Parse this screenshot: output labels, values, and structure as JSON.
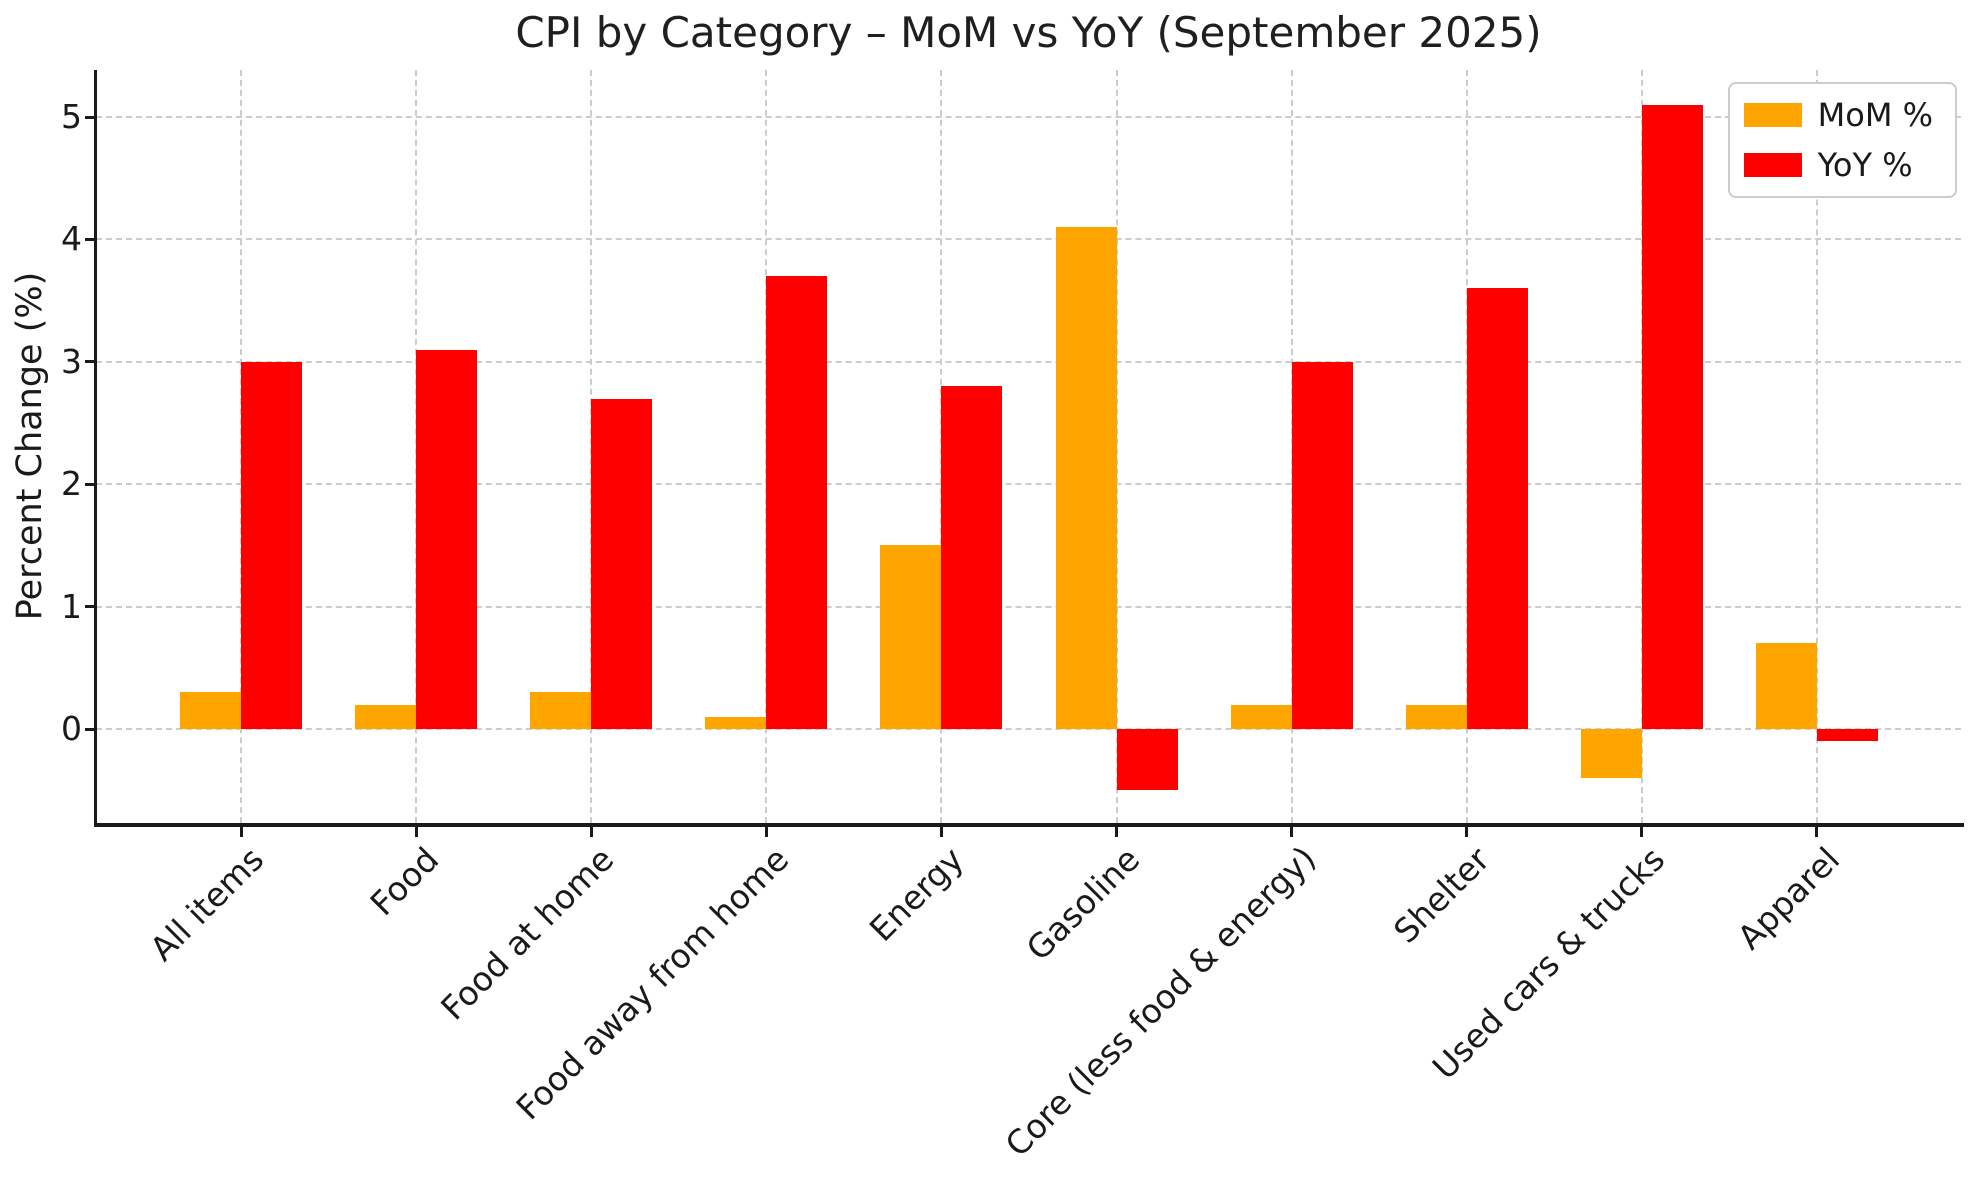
{
  "chart_data": {
    "type": "bar",
    "title": "CPI by Category – MoM vs YoY (September 2025)",
    "ylabel": "Percent Change (%)",
    "xlabel": "",
    "categories": [
      "All items",
      "Food",
      "Food at home",
      "Food away from home",
      "Energy",
      "Gasoline",
      "Core (less food & energy)",
      "Shelter",
      "Used cars & trucks",
      "Apparel"
    ],
    "series": [
      {
        "name": "MoM %",
        "color": "#FFA500",
        "values": [
          0.3,
          0.2,
          0.3,
          0.1,
          1.5,
          4.1,
          0.2,
          0.2,
          -0.4,
          0.7
        ]
      },
      {
        "name": "YoY %",
        "color": "#FF0000",
        "values": [
          3.0,
          3.1,
          2.7,
          3.7,
          2.8,
          -0.5,
          3.0,
          3.6,
          5.1,
          -0.1
        ]
      }
    ],
    "yticks": [
      0,
      1,
      2,
      3,
      4,
      5
    ],
    "ylim": [
      -0.77,
      5.38
    ],
    "grid": true,
    "grid_color": "#cccccc",
    "spine_color": "#1a1a1a",
    "legend_position": "upper right",
    "x_tick_rotation": 45
  }
}
